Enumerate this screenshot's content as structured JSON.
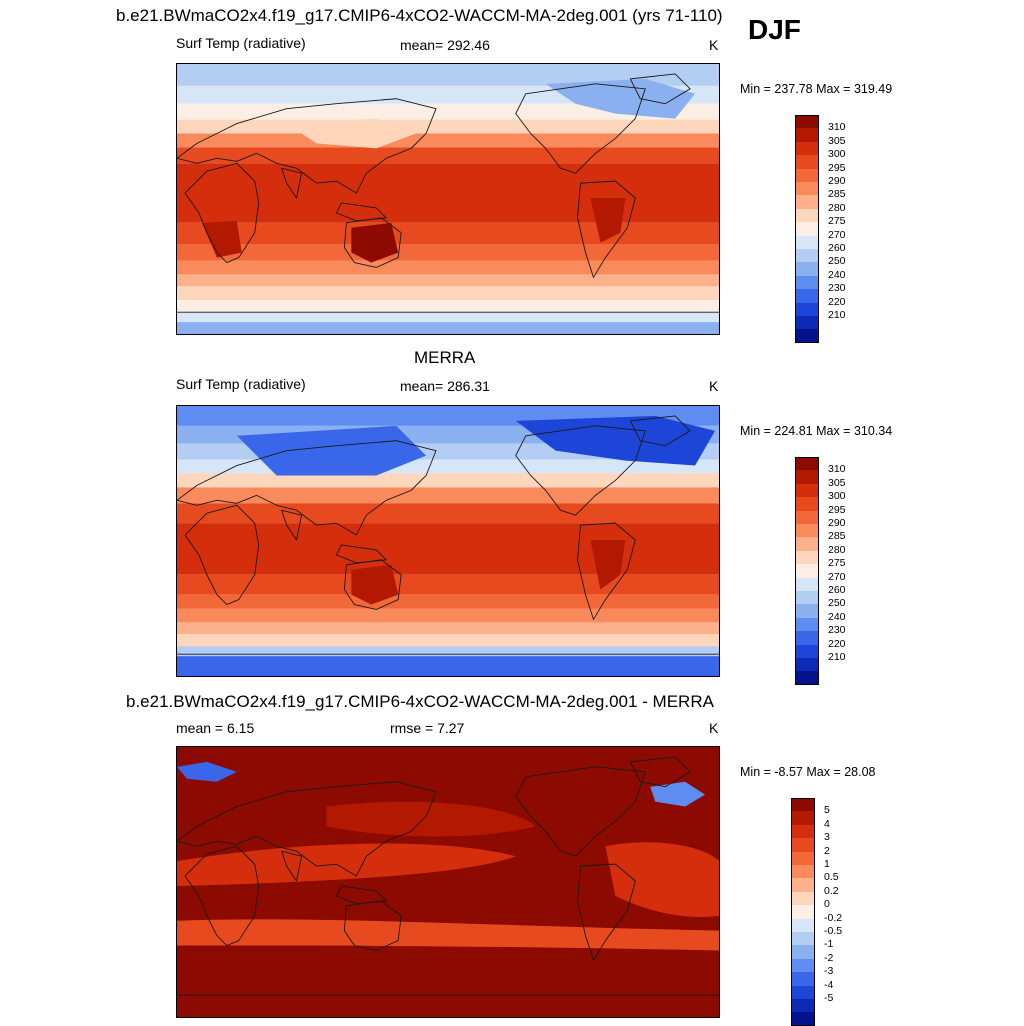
{
  "figure": {
    "season": "DJF",
    "case_name": "b.e21.BWmaCO2x4.f19_g17.CMIP6-4xCO2-WACCM-MA-2deg.001",
    "years": "(yrs 71-110)"
  },
  "panels": [
    {
      "id": "model",
      "title": "b.e21.BWmaCO2x4.f19_g17.CMIP6-4xCO2-WACCM-MA-2deg.001 (yrs 71-110)",
      "variable": "Surf Temp (radiative)",
      "stat_text": "mean= 292.46",
      "units": "K",
      "minmax": "Min = 237.78 Max = 319.49",
      "style": "model"
    },
    {
      "id": "obs",
      "title": "MERRA",
      "variable": "Surf Temp (radiative)",
      "stat_text": "mean= 286.31",
      "units": "K",
      "minmax": "Min = 224.81 Max = 310.34",
      "style": "obs"
    },
    {
      "id": "diff",
      "title": "b.e21.BWmaCO2x4.f19_g17.CMIP6-4xCO2-WACCM-MA-2deg.001 - MERRA",
      "variable": "mean =   6.15",
      "stat_text": "rmse =   7.27",
      "units": "K",
      "minmax": "Min =  -8.57 Max =  28.08",
      "style": "diff"
    }
  ],
  "chart_data": [
    {
      "type": "heatmap",
      "title": "b.e21.BWmaCO2x4.f19_g17.CMIP6-4xCO2-WACCM-MA-2deg.001 (yrs 71-110)",
      "variable": "Surf Temp (radiative)",
      "units": "K",
      "mean": 292.46,
      "min": 237.78,
      "max": 319.49,
      "colorbar_levels": [
        "310",
        "305",
        "300",
        "295",
        "290",
        "285",
        "280",
        "275",
        "270",
        "260",
        "250",
        "240",
        "230",
        "220",
        "210"
      ],
      "colorbar_colors": [
        "#8c0a00",
        "#b31800",
        "#d42e0c",
        "#e84a20",
        "#f26838",
        "#f98a5c",
        "#fdb08c",
        "#fdd6bc",
        "#fbeee4",
        "#d6e6f7",
        "#b4cdf2",
        "#8bb0f0",
        "#5e8cf0",
        "#3a67ea",
        "#1d45d8",
        "#0d2ab4",
        "#04128c"
      ]
    },
    {
      "type": "heatmap",
      "title": "MERRA",
      "variable": "Surf Temp (radiative)",
      "units": "K",
      "mean": 286.31,
      "min": 224.81,
      "max": 310.34,
      "colorbar_levels": [
        "310",
        "305",
        "300",
        "295",
        "290",
        "285",
        "280",
        "275",
        "270",
        "260",
        "250",
        "240",
        "230",
        "220",
        "210"
      ],
      "colorbar_colors": [
        "#8c0a00",
        "#b31800",
        "#d42e0c",
        "#e84a20",
        "#f26838",
        "#f98a5c",
        "#fdb08c",
        "#fdd6bc",
        "#fbeee4",
        "#d6e6f7",
        "#b4cdf2",
        "#8bb0f0",
        "#5e8cf0",
        "#3a67ea",
        "#1d45d8",
        "#0d2ab4",
        "#04128c"
      ]
    },
    {
      "type": "heatmap",
      "title": "b.e21.BWmaCO2x4.f19_g17.CMIP6-4xCO2-WACCM-MA-2deg.001 - MERRA",
      "units": "K",
      "mean": 6.15,
      "rmse": 7.27,
      "min": -8.57,
      "max": 28.08,
      "colorbar_levels": [
        "5",
        "4",
        "3",
        "2",
        "1",
        "0.5",
        "0.2",
        "0",
        "-0.2",
        "-0.5",
        "-1",
        "-2",
        "-3",
        "-4",
        "-5"
      ],
      "colorbar_colors": [
        "#8c0a00",
        "#b31800",
        "#d42e0c",
        "#e84a20",
        "#f26838",
        "#f98a5c",
        "#fdb08c",
        "#fdd6bc",
        "#fbeee4",
        "#d6e6f7",
        "#b4cdf2",
        "#8bb0f0",
        "#5e8cf0",
        "#3a67ea",
        "#1d45d8",
        "#0d2ab4",
        "#04128c"
      ]
    }
  ]
}
